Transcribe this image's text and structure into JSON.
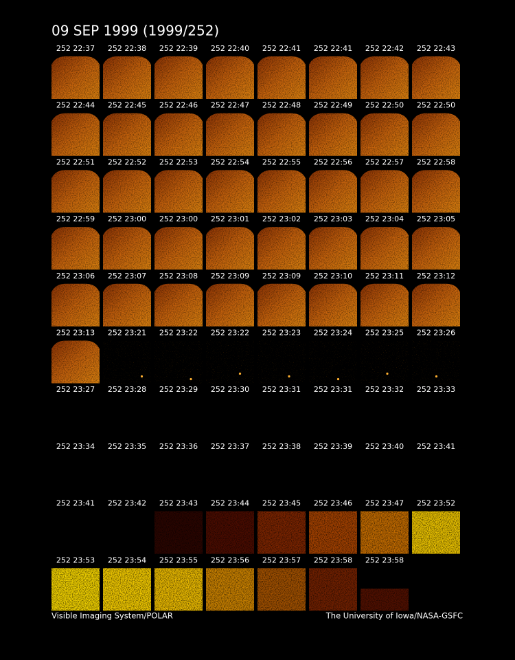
{
  "title": "09 SEP 1999  (1999/252)",
  "rows": [
    [
      "252 22:37",
      "252 22:38",
      "252 22:39",
      "252 22:40",
      "252 22:41",
      "252 22:41",
      "252 22:42",
      "252 22:43"
    ],
    [
      "252 22:44",
      "252 22:45",
      "252 22:46",
      "252 22:47",
      "252 22:48",
      "252 22:49",
      "252 22:50",
      "252 22:50"
    ],
    [
      "252 22:51",
      "252 22:52",
      "252 22:53",
      "252 22:54",
      "252 22:55",
      "252 22:56",
      "252 22:57",
      "252 22:58"
    ],
    [
      "252 22:59",
      "252 23:00",
      "252 23:00",
      "252 23:01",
      "252 23:02",
      "252 23:03",
      "252 23:04",
      "252 23:05"
    ],
    [
      "252 23:06",
      "252 23:07",
      "252 23:08",
      "252 23:09",
      "252 23:09",
      "252 23:10",
      "252 23:11",
      "252 23:12"
    ],
    [
      "252 23:13",
      "252 23:21",
      "252 23:22",
      "252 23:22",
      "252 23:23",
      "252 23:24",
      "252 23:25",
      "252 23:26"
    ],
    [
      "252 23:27",
      "252 23:28",
      "252 23:29",
      "252 23:30",
      "252 23:31",
      "252 23:31",
      "252 23:32",
      "252 23:33"
    ],
    [
      "252 23:34",
      "252 23:35",
      "252 23:36",
      "252 23:37",
      "252 23:38",
      "252 23:39",
      "252 23:40",
      "252 23:41"
    ],
    [
      "252 23:41",
      "252 23:42",
      "252 23:43",
      "252 23:44",
      "252 23:45",
      "252 23:46",
      "252 23:47",
      "252 23:52"
    ],
    [
      "252 23:53",
      "252 23:54",
      "252 23:55",
      "252 23:56",
      "252 23:57",
      "252 23:58",
      "252 23:58"
    ]
  ],
  "footer": {
    "left": "Visible Imaging System/POLAR",
    "right": "The University of Iowa/NASA-GSFC"
  }
}
